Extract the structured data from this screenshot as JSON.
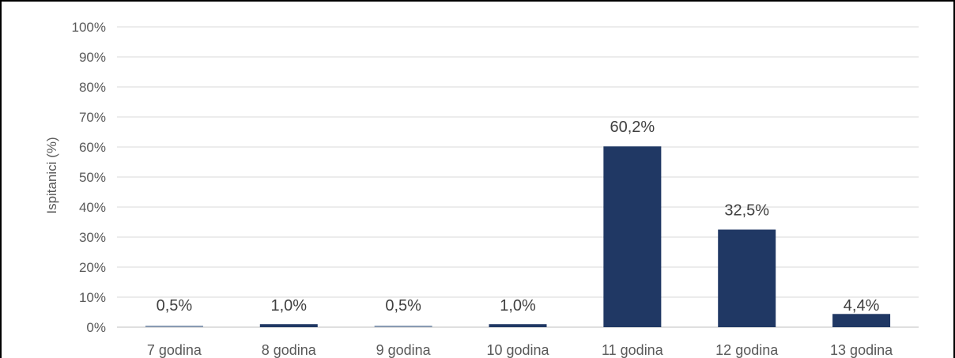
{
  "chart_data": {
    "type": "bar",
    "categories": [
      "7 godina",
      "8 godina",
      "9 godina",
      "10 godina",
      "11 godina",
      "12 godina",
      "13 godina"
    ],
    "values": [
      0.5,
      1.0,
      0.5,
      1.0,
      60.2,
      32.5,
      4.4
    ],
    "data_labels": [
      "0,5%",
      "1,0%",
      "0,5%",
      "1,0%",
      "60,2%",
      "32,5%",
      "4,4%"
    ],
    "ylabel": "Ispitanici (%)",
    "xlabel": "",
    "ylim": [
      0,
      100
    ],
    "yticks": [
      "0%",
      "10%",
      "20%",
      "30%",
      "40%",
      "50%",
      "60%",
      "70%",
      "80%",
      "90%",
      "100%"
    ],
    "grid": true,
    "legend": "none",
    "colors": {
      "bar": "#203864",
      "bar_small": "#8497b0",
      "grid": "#d9d9d9",
      "axis": "#bfbfbf"
    }
  }
}
